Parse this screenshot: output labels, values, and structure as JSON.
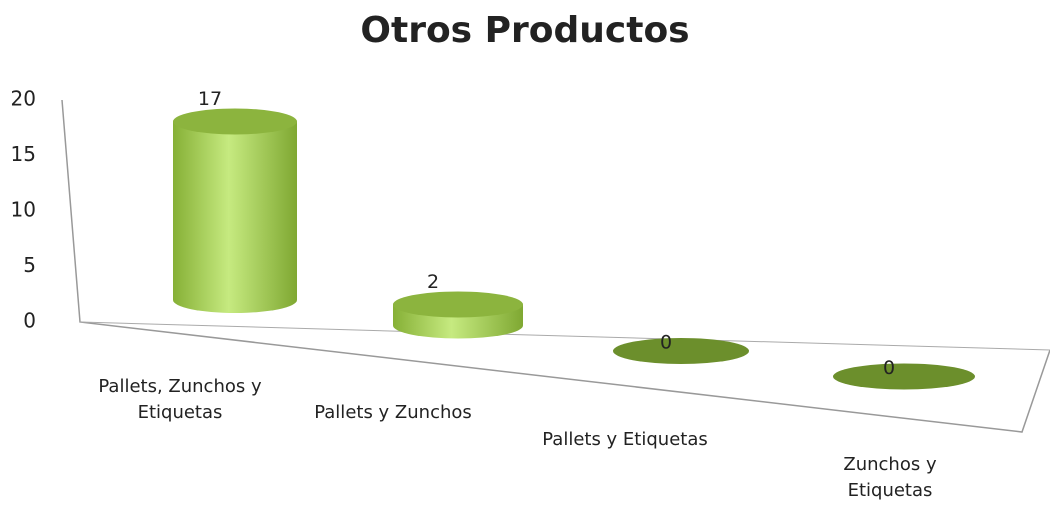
{
  "chart_data": {
    "type": "bar3d",
    "title": "Otros Productos",
    "categories": [
      "Pallets, Zunchos y Etiquetas",
      "Pallets y Zunchos",
      "Pallets y Etiquetas",
      "Zunchos y Etiquetas"
    ],
    "values": [
      17,
      2,
      0,
      0
    ],
    "color": "#9bc446",
    "ylim": [
      0,
      20
    ],
    "yticks": [
      0,
      5,
      10,
      15,
      20
    ],
    "grid": false
  }
}
